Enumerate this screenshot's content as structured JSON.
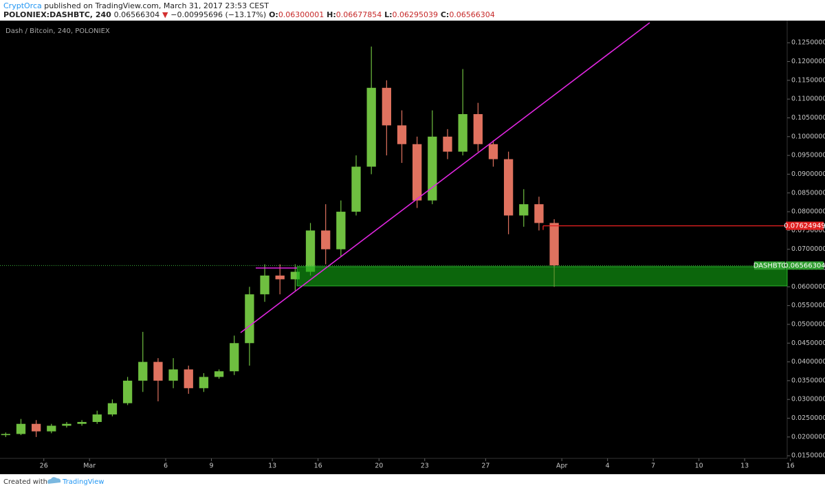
{
  "header": {
    "author": "CryptOrca",
    "published": "published on TradingView.com, March 31, 2017 23:53 CEST",
    "symbol": "POLONIEX:DASHBTC, 240",
    "last": "0.06566304",
    "change_arrow": "▼",
    "change": "−0.00995696 (−13.17%)",
    "o_label": "O:",
    "open": "0.06300001",
    "h_label": "H:",
    "high": "0.06677854",
    "l_label": "L:",
    "low": "0.06295039",
    "c_label": "C:",
    "close": "0.06566304"
  },
  "footer": {
    "created": "Created with",
    "brand": "TradingView"
  },
  "chart_data": {
    "type": "candlestick",
    "title": "Dash / Bitcoin, 240, POLONIEX",
    "x": [
      "2017-02-23T12:00",
      "2017-02-24T12:00",
      "2017-02-25T12:00",
      "2017-02-26T12:00",
      "2017-02-27T12:00",
      "2017-02-28T12:00",
      "2017-03-01T12:00",
      "2017-03-02T12:00",
      "2017-03-03T12:00",
      "2017-03-04T12:00",
      "2017-03-05T12:00",
      "2017-03-06T12:00",
      "2017-03-07T12:00",
      "2017-03-08T12:00",
      "2017-03-09T12:00",
      "2017-03-10T12:00",
      "2017-03-11T12:00",
      "2017-03-12T12:00",
      "2017-03-13T12:00",
      "2017-03-14T12:00",
      "2017-03-15T12:00",
      "2017-03-16T12:00",
      "2017-03-17T12:00",
      "2017-03-18T12:00",
      "2017-03-19T12:00",
      "2017-03-20T12:00",
      "2017-03-21T12:00",
      "2017-03-22T12:00",
      "2017-03-23T12:00",
      "2017-03-24T12:00",
      "2017-03-25T12:00",
      "2017-03-26T12:00",
      "2017-03-27T12:00",
      "2017-03-28T12:00",
      "2017-03-29T12:00",
      "2017-03-30T12:00",
      "2017-03-31T12:00"
    ],
    "open": [
      0.0205,
      0.0208,
      0.0235,
      0.0215,
      0.023,
      0.0235,
      0.024,
      0.026,
      0.029,
      0.035,
      0.04,
      0.035,
      0.038,
      0.033,
      0.036,
      0.0375,
      0.045,
      0.058,
      0.063,
      0.062,
      0.064,
      0.075,
      0.07,
      0.08,
      0.092,
      0.113,
      0.103,
      0.098,
      0.083,
      0.1,
      0.096,
      0.106,
      0.098,
      0.094,
      0.079,
      0.082,
      0.077
    ],
    "high": [
      0.0212,
      0.0248,
      0.0245,
      0.0235,
      0.024,
      0.0245,
      0.027,
      0.03,
      0.036,
      0.048,
      0.041,
      0.041,
      0.039,
      0.037,
      0.038,
      0.047,
      0.06,
      0.066,
      0.066,
      0.066,
      0.077,
      0.082,
      0.083,
      0.095,
      0.124,
      0.115,
      0.107,
      0.1,
      0.107,
      0.102,
      0.118,
      0.109,
      0.099,
      0.096,
      0.086,
      0.084,
      0.078
    ],
    "low": [
      0.02,
      0.0205,
      0.02,
      0.021,
      0.0225,
      0.023,
      0.0235,
      0.0255,
      0.0285,
      0.032,
      0.0295,
      0.033,
      0.0315,
      0.032,
      0.0355,
      0.0365,
      0.039,
      0.056,
      0.058,
      0.059,
      0.063,
      0.066,
      0.068,
      0.079,
      0.09,
      0.095,
      0.093,
      0.081,
      0.082,
      0.094,
      0.095,
      0.096,
      0.092,
      0.074,
      0.076,
      0.075,
      0.06
    ],
    "close": [
      0.0208,
      0.0235,
      0.0215,
      0.023,
      0.0235,
      0.024,
      0.026,
      0.029,
      0.035,
      0.04,
      0.035,
      0.038,
      0.033,
      0.036,
      0.0375,
      0.045,
      0.058,
      0.063,
      0.062,
      0.064,
      0.075,
      0.07,
      0.08,
      0.092,
      0.113,
      0.103,
      0.098,
      0.083,
      0.1,
      0.096,
      0.106,
      0.098,
      0.094,
      0.079,
      0.082,
      0.077,
      0.0657
    ],
    "up_color": "#6fbf40",
    "down_color": "#e0725f",
    "xlim": [
      "2017-02-23T03:00",
      "2017-04-15T19:00"
    ],
    "xticks": [
      {
        "value": "2017-02-26T00:00",
        "label": "26"
      },
      {
        "value": "2017-03-01T00:00",
        "label": "Mar"
      },
      {
        "value": "2017-03-06T00:00",
        "label": "6"
      },
      {
        "value": "2017-03-09T00:00",
        "label": "9"
      },
      {
        "value": "2017-03-13T00:00",
        "label": "13"
      },
      {
        "value": "2017-03-16T00:00",
        "label": "16"
      },
      {
        "value": "2017-03-20T00:00",
        "label": "20"
      },
      {
        "value": "2017-03-23T00:00",
        "label": "23"
      },
      {
        "value": "2017-03-27T00:00",
        "label": "27"
      },
      {
        "value": "2017-04-01T00:00",
        "label": "Apr"
      },
      {
        "value": "2017-04-04T00:00",
        "label": "4"
      },
      {
        "value": "2017-04-07T00:00",
        "label": "7"
      },
      {
        "value": "2017-04-10T00:00",
        "label": "10"
      },
      {
        "value": "2017-04-13T00:00",
        "label": "13"
      },
      {
        "value": "2017-04-16T00:00",
        "label": "16"
      }
    ],
    "ylim": [
      0.0143,
      0.1309
    ],
    "yticks": [
      {
        "value": 0.015,
        "label": "0.01500000"
      },
      {
        "value": 0.02,
        "label": "0.02000000"
      },
      {
        "value": 0.025,
        "label": "0.02500000"
      },
      {
        "value": 0.03,
        "label": "0.03000000"
      },
      {
        "value": 0.035,
        "label": "0.03500000"
      },
      {
        "value": 0.04,
        "label": "0.04000000"
      },
      {
        "value": 0.045,
        "label": "0.04500000"
      },
      {
        "value": 0.05,
        "label": "0.05000000"
      },
      {
        "value": 0.055,
        "label": "0.05500000"
      },
      {
        "value": 0.06,
        "label": "0.06000000"
      },
      {
        "value": 0.065,
        "label": "0.06500000"
      },
      {
        "value": 0.07,
        "label": "0.07000000"
      },
      {
        "value": 0.075,
        "label": "0.07500000"
      },
      {
        "value": 0.08,
        "label": "0.08000000"
      },
      {
        "value": 0.085,
        "label": "0.08500000"
      },
      {
        "value": 0.09,
        "label": "0.09000000"
      },
      {
        "value": 0.095,
        "label": "0.09500000"
      },
      {
        "value": 0.1,
        "label": "0.10000000"
      },
      {
        "value": 0.105,
        "label": "0.10500000"
      },
      {
        "value": 0.11,
        "label": "0.11000000"
      },
      {
        "value": 0.115,
        "label": "0.11500000"
      },
      {
        "value": 0.12,
        "label": "0.12000000"
      },
      {
        "value": 0.125,
        "label": "0.12500000"
      }
    ],
    "grid": false,
    "price_label": "DASHBTC",
    "last_price": 0.06566304,
    "alert_price": 0.07624949
  }
}
